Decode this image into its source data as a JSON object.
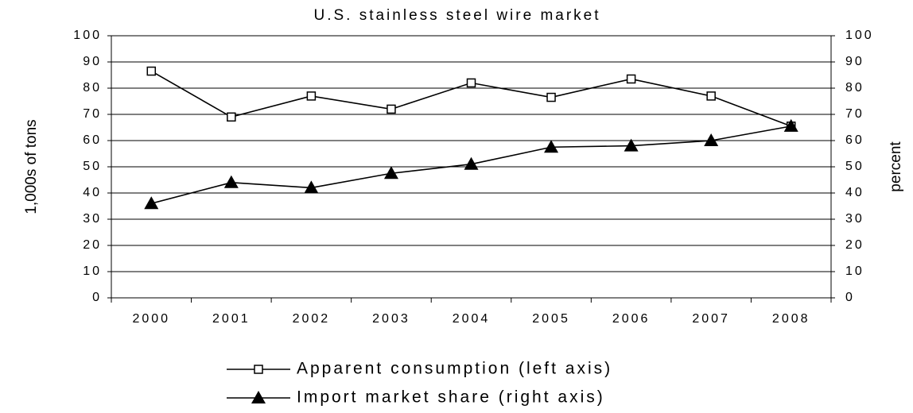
{
  "chart_data": {
    "type": "line",
    "title": "U.S. stainless steel wire market",
    "y_label": "1,000s of tons",
    "y2_label": "percent",
    "categories": [
      "2000",
      "2001",
      "2002",
      "2003",
      "2004",
      "2005",
      "2006",
      "2007",
      "2008"
    ],
    "series": [
      {
        "name": "Apparent consumption (left axis)",
        "color": "#000000",
        "marker": "square",
        "axis": "y",
        "values": [
          86.5,
          69,
          77,
          72,
          82,
          76.5,
          83.5,
          77,
          65.5
        ]
      },
      {
        "name": "Import market share (right axis)",
        "color": "#000000",
        "marker": "triangle",
        "axis": "y2",
        "values": [
          36,
          44,
          42,
          47.5,
          51,
          57.5,
          58,
          60,
          65.5
        ]
      }
    ],
    "ylim": [
      0,
      100
    ],
    "yticks": [
      0,
      10,
      20,
      30,
      40,
      50,
      60,
      70,
      80,
      90,
      100
    ],
    "y2lim": [
      0,
      100
    ],
    "y2ticks": [
      0,
      10,
      20,
      30,
      40,
      50,
      60,
      70,
      80,
      90,
      100
    ],
    "grid": true,
    "legend": "bottom"
  }
}
